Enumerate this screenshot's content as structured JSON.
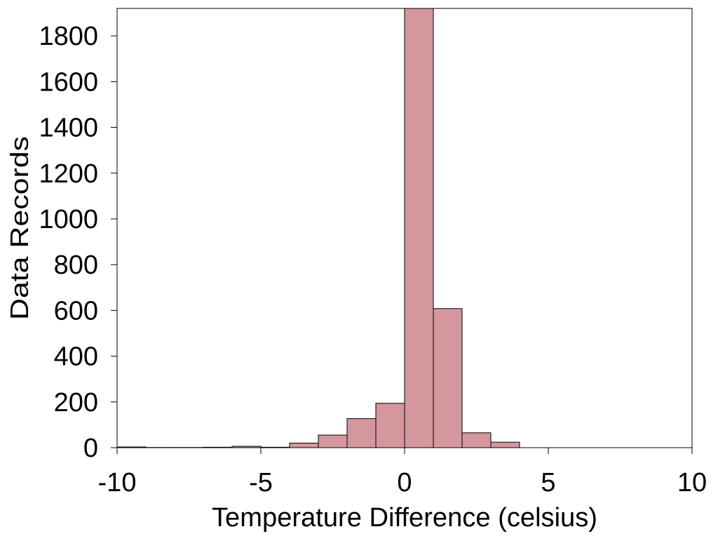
{
  "chart_data": {
    "type": "bar",
    "title": "",
    "xlabel": "Temperature Difference (celsius)",
    "ylabel": "Data Records",
    "xlim": [
      -10,
      10
    ],
    "ylim": [
      0,
      1920
    ],
    "xticks": [
      -10,
      -5,
      0,
      5,
      10
    ],
    "xtick_labels": [
      "-10",
      "-5",
      "0",
      "5",
      "10"
    ],
    "yticks": [
      0,
      200,
      400,
      600,
      800,
      1000,
      1200,
      1400,
      1600,
      1800
    ],
    "ytick_labels": [
      "0",
      "200",
      "400",
      "600",
      "800",
      "1000",
      "1200",
      "1400",
      "1600",
      "1800"
    ],
    "bin_width": 1,
    "bin_starts": [
      -10,
      -9,
      -8,
      -7,
      -6,
      -5,
      -4,
      -3,
      -2,
      -1,
      0,
      1,
      2,
      3,
      4,
      5,
      6,
      7,
      8,
      9
    ],
    "values": [
      3,
      1,
      1,
      2,
      6,
      2,
      20,
      55,
      127,
      194,
      1920,
      608,
      65,
      24,
      0,
      0,
      0,
      0,
      0,
      0
    ],
    "grid": false,
    "legend": "none",
    "colors": {
      "bar_fill": "#d4979e",
      "bar_stroke": "#000000",
      "axis": "#000000"
    }
  }
}
